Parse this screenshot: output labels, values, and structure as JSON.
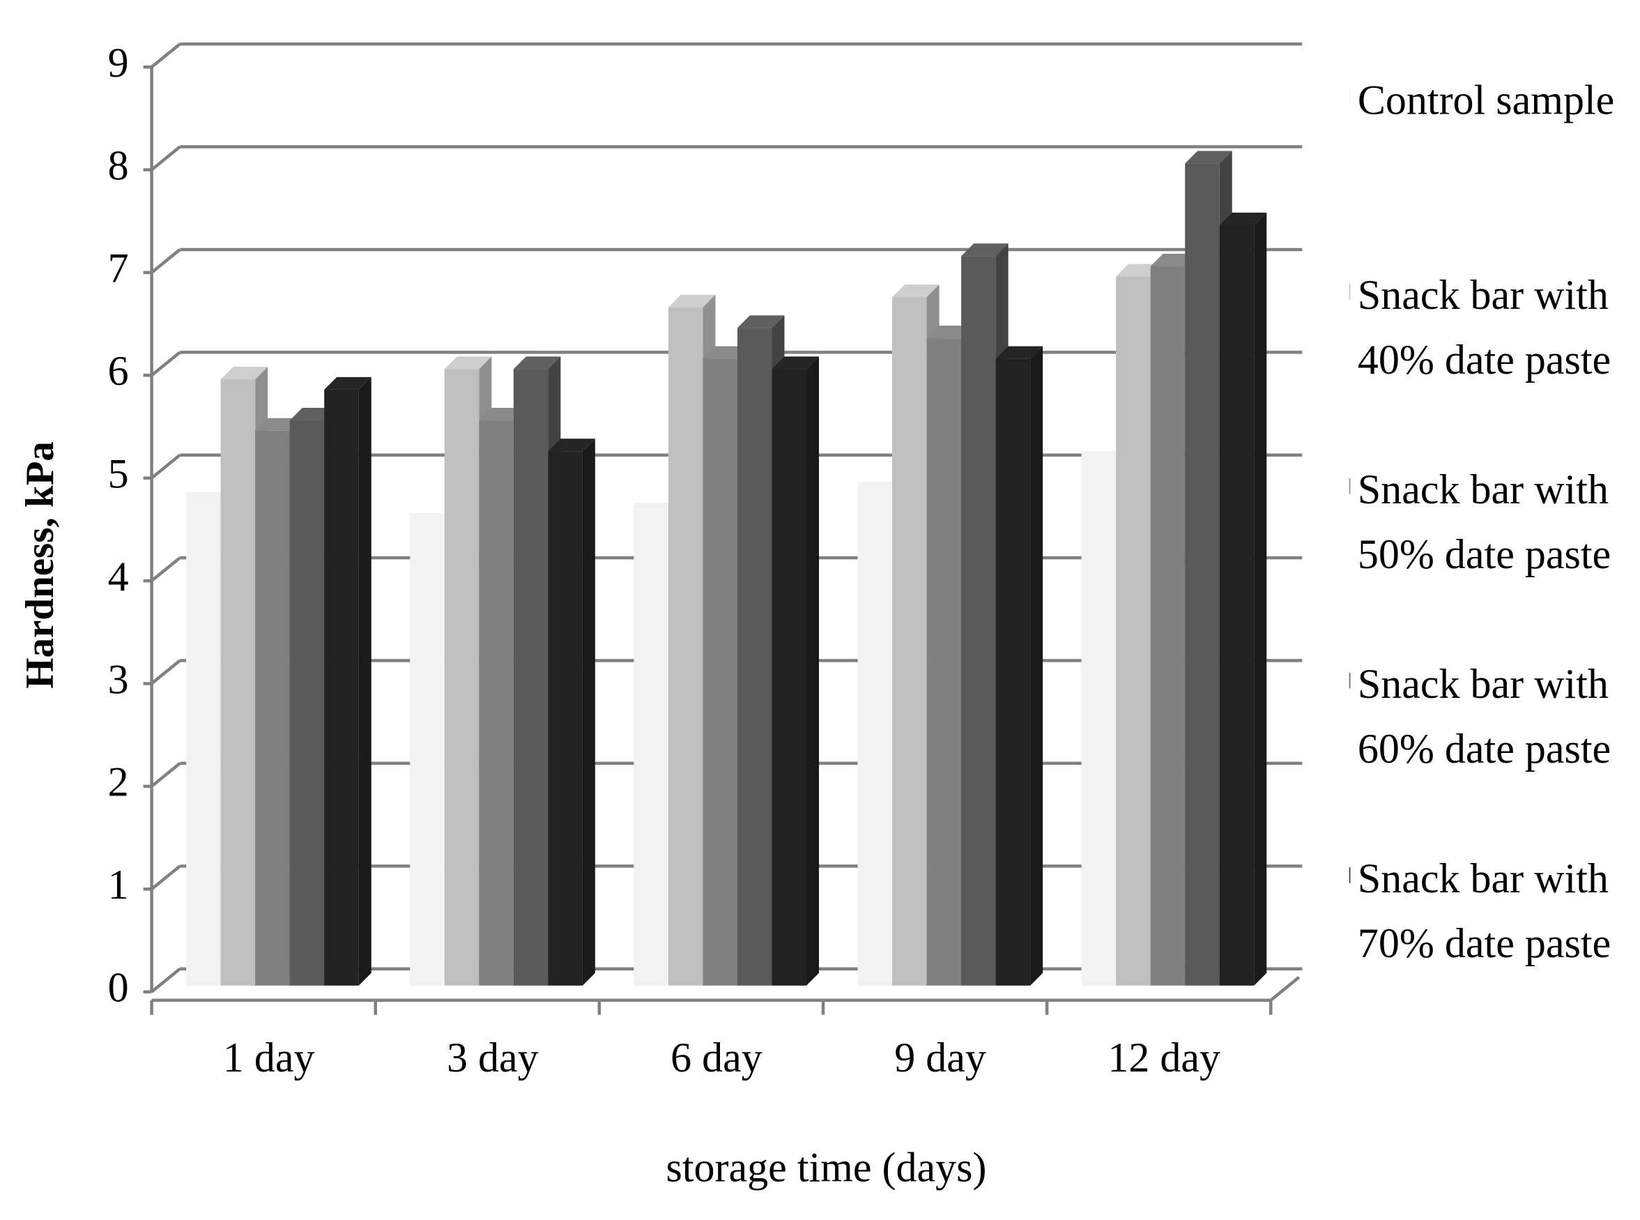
{
  "chart_data": {
    "type": "bar",
    "x_label": "storage time (days)",
    "y_label": "Hardness, kPa",
    "categories": [
      "1 day",
      "3 day",
      "6 day",
      "9 day",
      "12 day"
    ],
    "series": [
      {
        "name": "Control sample",
        "color": "#f2f2f2",
        "values": [
          4.8,
          4.6,
          4.7,
          4.9,
          5.2
        ]
      },
      {
        "name": "Snack bar with 40% date paste",
        "color": "#bfbfbf",
        "values": [
          5.9,
          6.0,
          6.6,
          6.7,
          6.9
        ]
      },
      {
        "name": "Snack bar with 50% date paste",
        "color": "#808080",
        "values": [
          5.4,
          5.5,
          6.1,
          6.3,
          7.0
        ]
      },
      {
        "name": "Snack bar with 60% date paste",
        "color": "#595959",
        "values": [
          5.5,
          6.0,
          6.4,
          7.1,
          8.0
        ]
      },
      {
        "name": "Snack bar with 70% date paste",
        "color": "#222222",
        "values": [
          5.8,
          5.2,
          6.0,
          6.1,
          7.4
        ]
      }
    ],
    "ylim": [
      0,
      9
    ],
    "yticks": [
      0,
      1,
      2,
      3,
      4,
      5,
      6,
      7,
      8,
      9
    ],
    "grid": true,
    "legend": "right"
  }
}
